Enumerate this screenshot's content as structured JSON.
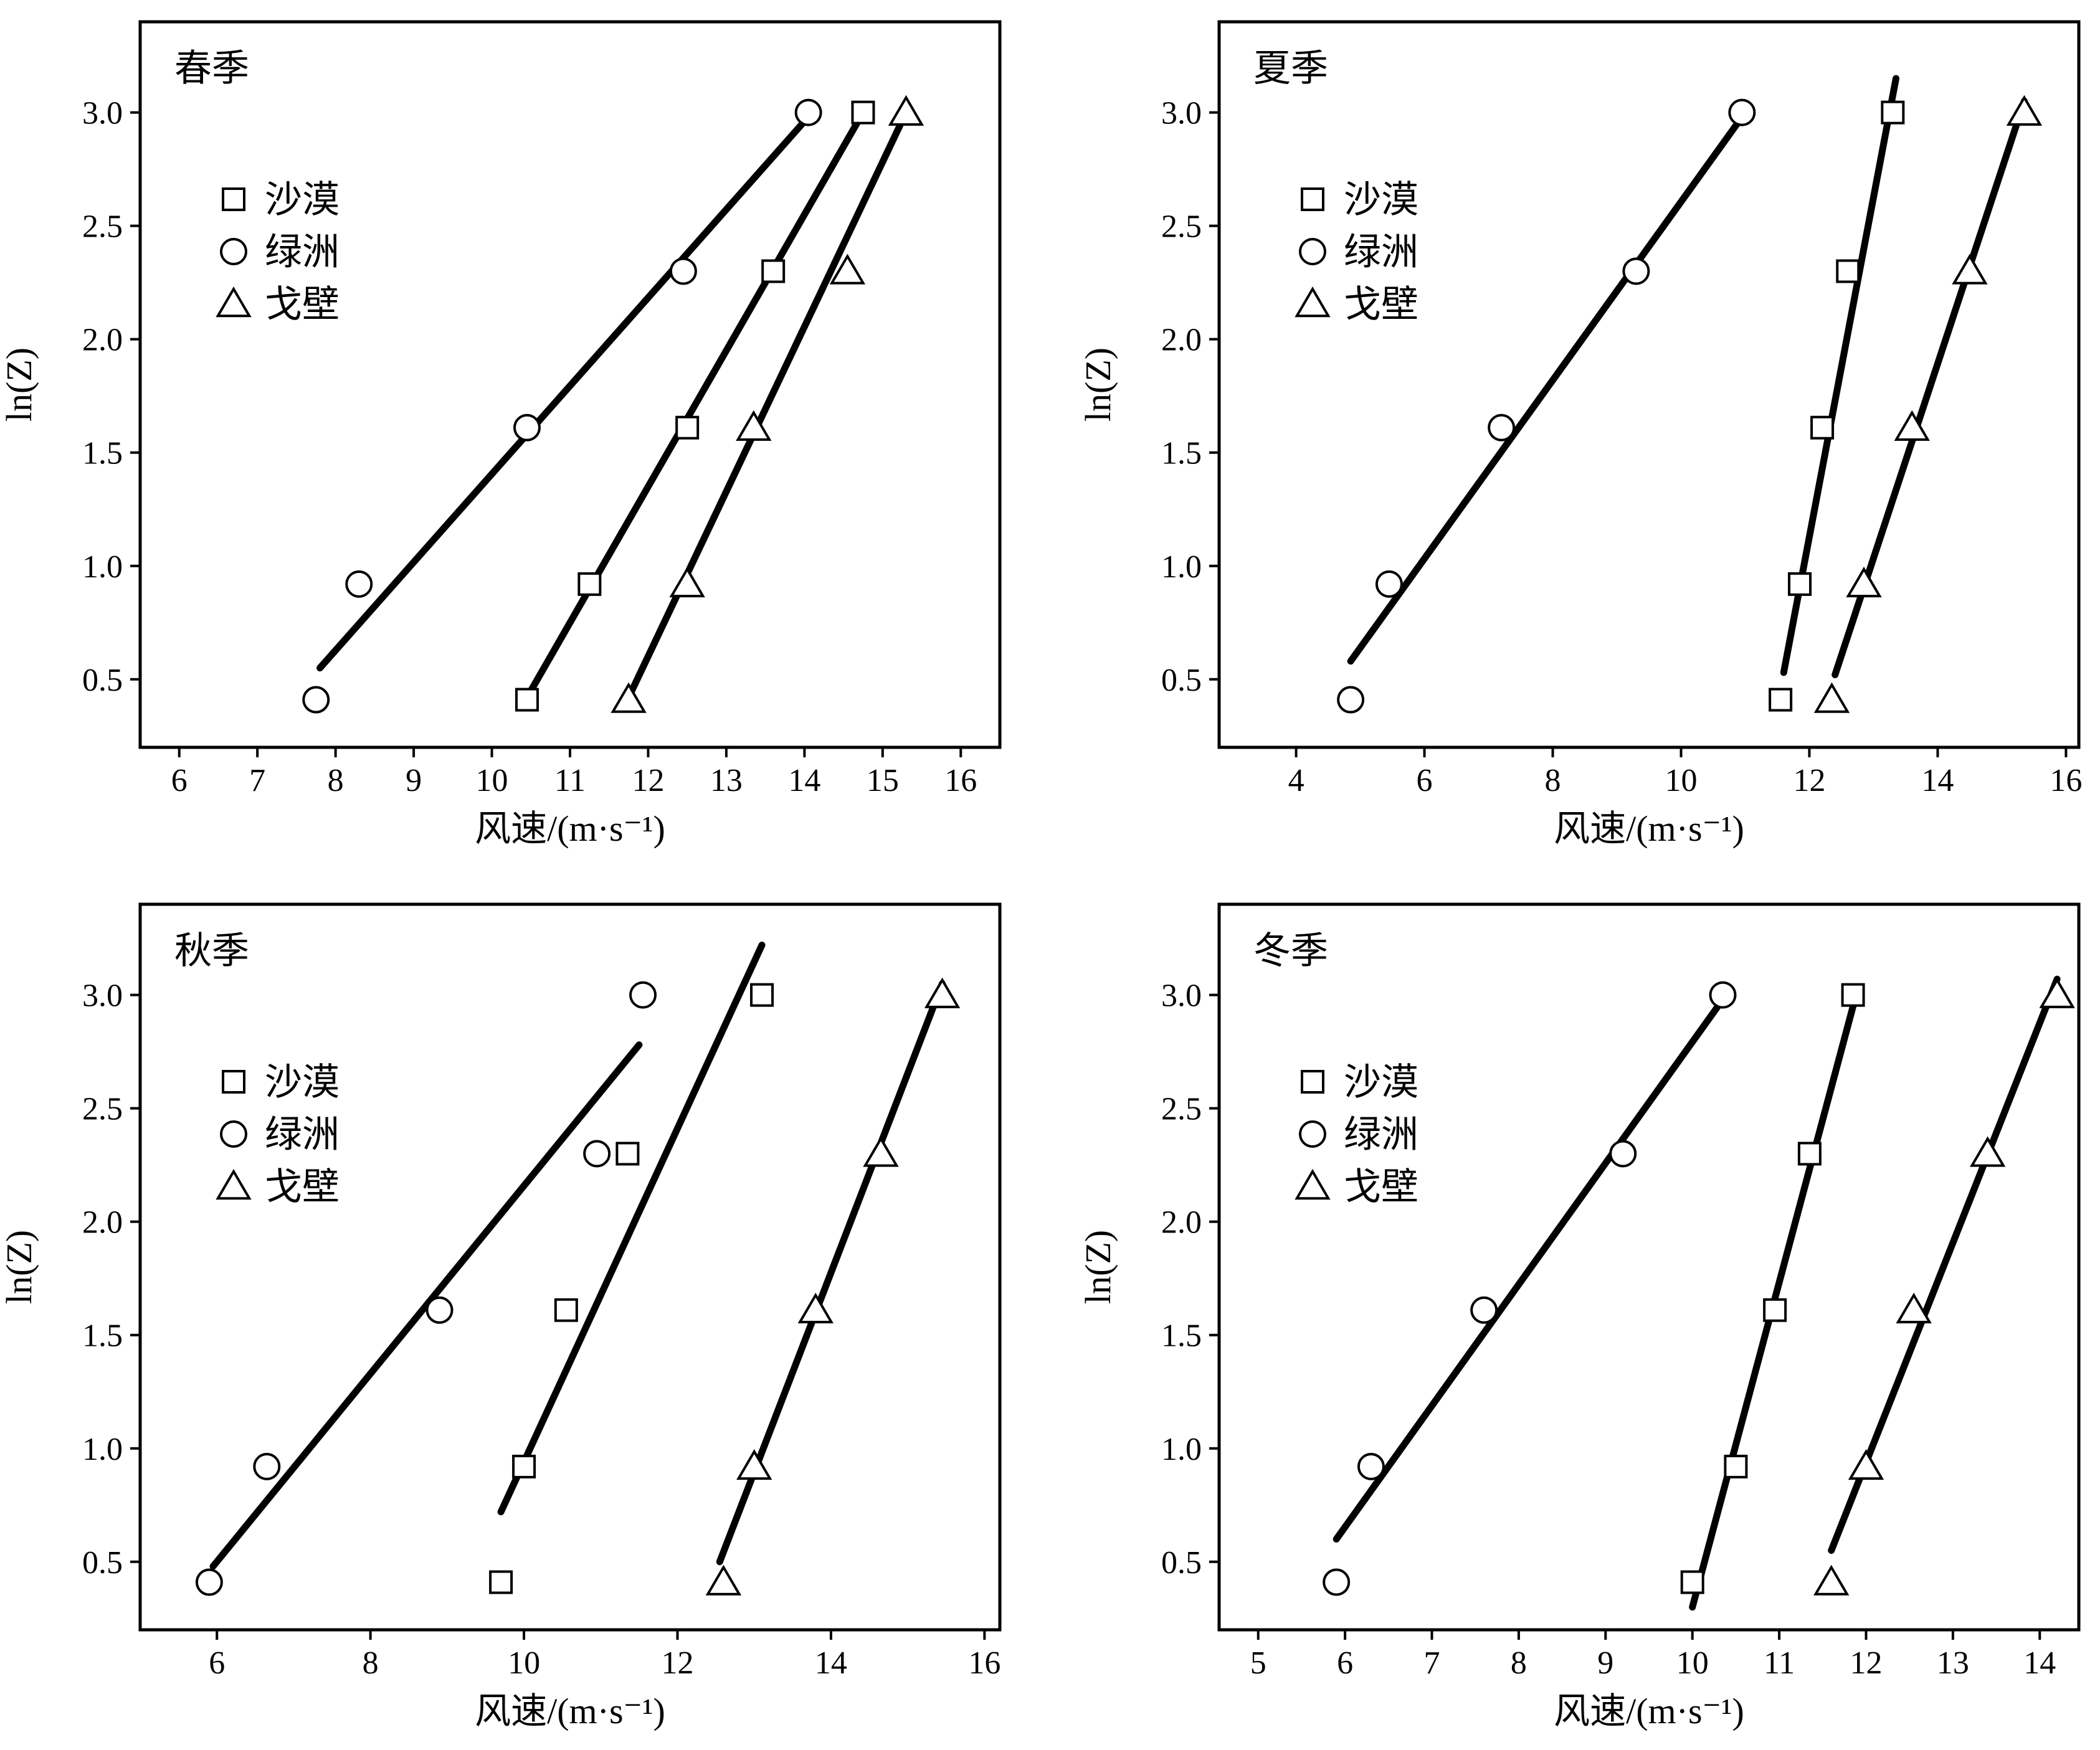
{
  "figure": {
    "ylabel": "ln(Z)",
    "xlabel": "风速/(m·s⁻¹)",
    "legend": [
      {
        "label": "沙漠",
        "marker": "square"
      },
      {
        "label": "绿洲",
        "marker": "circle"
      },
      {
        "label": "戈壁",
        "marker": "triangle"
      }
    ],
    "colors": {
      "ink": "#000000",
      "background": "#ffffff"
    }
  },
  "chart_data": [
    {
      "type": "scatter",
      "title": "春季",
      "xlabel": "风速/(m·s⁻¹)",
      "ylabel": "ln(Z)",
      "xlim": [
        5.5,
        16.5
      ],
      "ylim": [
        0.2,
        3.4
      ],
      "xticks": [
        6,
        7,
        8,
        9,
        10,
        11,
        12,
        13,
        14,
        15,
        16
      ],
      "yticks": [
        0.5,
        1.0,
        1.5,
        2.0,
        2.5,
        3.0
      ],
      "legend_position": "upper-left",
      "series": [
        {
          "name": "沙漠",
          "marker": "square",
          "x": [
            10.45,
            11.25,
            12.5,
            13.6,
            14.75
          ],
          "y": [
            0.41,
            0.92,
            1.61,
            2.3,
            3.0
          ],
          "fit": [
            [
              10.45,
              0.42
            ],
            [
              14.75,
              3.0
            ]
          ]
        },
        {
          "name": "绿洲",
          "marker": "circle",
          "x": [
            7.75,
            8.3,
            10.45,
            12.45,
            14.05
          ],
          "y": [
            0.41,
            0.92,
            1.61,
            2.3,
            3.0
          ],
          "fit": [
            [
              7.8,
              0.55
            ],
            [
              14.1,
              3.0
            ]
          ]
        },
        {
          "name": "戈壁",
          "marker": "triangle",
          "x": [
            11.75,
            12.5,
            13.35,
            14.55,
            15.3
          ],
          "y": [
            0.41,
            0.92,
            1.61,
            2.3,
            3.0
          ],
          "fit": [
            [
              11.75,
              0.42
            ],
            [
              15.3,
              3.0
            ]
          ]
        }
      ]
    },
    {
      "type": "scatter",
      "title": "夏季",
      "xlabel": "风速/(m·s⁻¹)",
      "ylabel": "ln(Z)",
      "xlim": [
        2.8,
        16.2
      ],
      "ylim": [
        0.2,
        3.4
      ],
      "xticks": [
        4,
        6,
        8,
        10,
        12,
        14,
        16
      ],
      "yticks": [
        0.5,
        1.0,
        1.5,
        2.0,
        2.5,
        3.0
      ],
      "legend_position": "upper-left",
      "series": [
        {
          "name": "沙漠",
          "marker": "square",
          "x": [
            11.55,
            11.85,
            12.2,
            12.6,
            13.3
          ],
          "y": [
            0.41,
            0.92,
            1.61,
            2.3,
            3.0
          ],
          "fit": [
            [
              11.6,
              0.53
            ],
            [
              13.35,
              3.15
            ]
          ]
        },
        {
          "name": "绿洲",
          "marker": "circle",
          "x": [
            4.85,
            5.45,
            7.2,
            9.3,
            10.95
          ],
          "y": [
            0.41,
            0.92,
            1.61,
            2.3,
            3.0
          ],
          "fit": [
            [
              4.85,
              0.58
            ],
            [
              10.95,
              2.98
            ]
          ]
        },
        {
          "name": "戈壁",
          "marker": "triangle",
          "x": [
            12.35,
            12.85,
            13.6,
            14.5,
            15.35
          ],
          "y": [
            0.41,
            0.92,
            1.61,
            2.3,
            3.0
          ],
          "fit": [
            [
              12.4,
              0.52
            ],
            [
              15.35,
              3.05
            ]
          ]
        }
      ]
    },
    {
      "type": "scatter",
      "title": "秋季",
      "xlabel": "风速/(m·s⁻¹)",
      "ylabel": "ln(Z)",
      "xlim": [
        5.0,
        16.2
      ],
      "ylim": [
        0.2,
        3.4
      ],
      "xticks": [
        6,
        8,
        10,
        12,
        14,
        16
      ],
      "yticks": [
        0.5,
        1.0,
        1.5,
        2.0,
        2.5,
        3.0
      ],
      "legend_position": "upper-left",
      "series": [
        {
          "name": "沙漠",
          "marker": "square",
          "x": [
            9.7,
            10.0,
            10.55,
            11.35,
            13.1
          ],
          "y": [
            0.41,
            0.92,
            1.61,
            2.3,
            3.0
          ],
          "fit": [
            [
              9.7,
              0.72
            ],
            [
              13.1,
              3.22
            ]
          ]
        },
        {
          "name": "绿洲",
          "marker": "circle",
          "x": [
            5.9,
            6.65,
            8.9,
            10.95,
            11.55
          ],
          "y": [
            0.41,
            0.92,
            1.61,
            2.3,
            3.0
          ],
          "fit": [
            [
              5.95,
              0.48
            ],
            [
              11.5,
              2.78
            ]
          ]
        },
        {
          "name": "戈壁",
          "marker": "triangle",
          "x": [
            12.6,
            13.0,
            13.8,
            14.65,
            15.45
          ],
          "y": [
            0.41,
            0.92,
            1.61,
            2.3,
            3.0
          ],
          "fit": [
            [
              12.55,
              0.5
            ],
            [
              15.45,
              3.05
            ]
          ]
        }
      ]
    },
    {
      "type": "scatter",
      "title": "冬季",
      "xlabel": "风速/(m·s⁻¹)",
      "ylabel": "ln(Z)",
      "xlim": [
        4.55,
        14.45
      ],
      "ylim": [
        0.2,
        3.4
      ],
      "xticks": [
        5,
        6,
        7,
        8,
        9,
        10,
        11,
        12,
        13,
        14
      ],
      "yticks": [
        0.5,
        1.0,
        1.5,
        2.0,
        2.5,
        3.0
      ],
      "legend_position": "upper-left",
      "series": [
        {
          "name": "沙漠",
          "marker": "square",
          "x": [
            10.0,
            10.5,
            10.95,
            11.35,
            11.85
          ],
          "y": [
            0.41,
            0.92,
            1.61,
            2.3,
            3.0
          ],
          "fit": [
            [
              10.0,
              0.3
            ],
            [
              11.85,
              2.95
            ]
          ]
        },
        {
          "name": "绿洲",
          "marker": "circle",
          "x": [
            5.9,
            6.3,
            7.6,
            9.2,
            10.35
          ],
          "y": [
            0.41,
            0.92,
            1.61,
            2.3,
            3.0
          ],
          "fit": [
            [
              5.9,
              0.6
            ],
            [
              10.35,
              2.98
            ]
          ]
        },
        {
          "name": "戈壁",
          "marker": "triangle",
          "x": [
            11.6,
            12.0,
            12.55,
            13.4,
            14.2
          ],
          "y": [
            0.41,
            0.92,
            1.61,
            2.3,
            3.0
          ],
          "fit": [
            [
              11.6,
              0.55
            ],
            [
              14.2,
              3.07
            ]
          ]
        }
      ]
    }
  ]
}
